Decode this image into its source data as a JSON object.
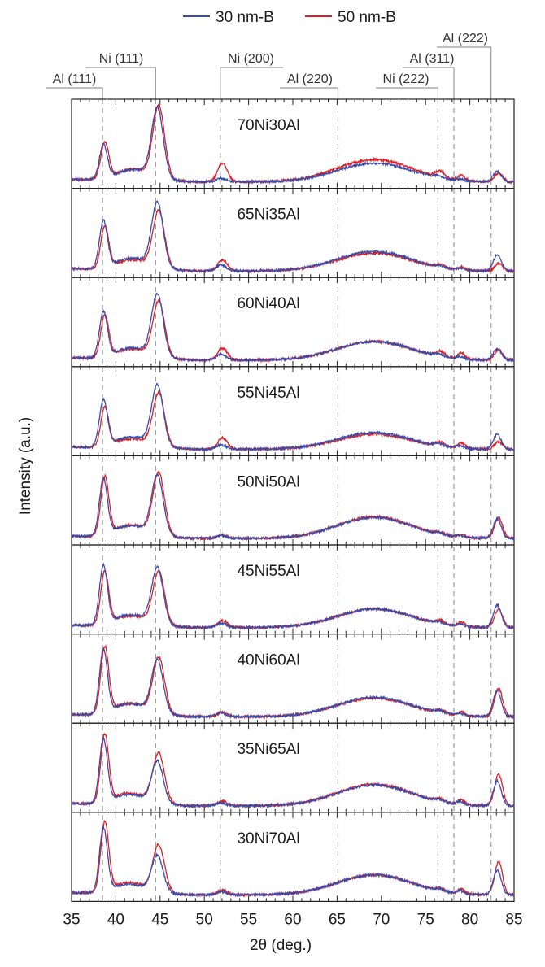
{
  "chart_data": {
    "type": "line",
    "title": "",
    "xlabel": "2θ (deg.)",
    "ylabel": "Intensity (a.u.)",
    "xlim": [
      35,
      85
    ],
    "x_ticks": [
      "35",
      "40",
      "45",
      "50",
      "55",
      "60",
      "65",
      "70",
      "75",
      "80",
      "85"
    ],
    "legend": {
      "position": "top-center",
      "entries": [
        {
          "name": "30 nm-B",
          "color": "#3B4BA8"
        },
        {
          "name": "50 nm-B",
          "color": "#E01E24"
        }
      ]
    },
    "reference_lines": [
      {
        "label": "Al (111)",
        "x": 38.5
      },
      {
        "label": "Ni (111)",
        "x": 44.5
      },
      {
        "label": "Ni (200)",
        "x": 51.8
      },
      {
        "label": "Al (220)",
        "x": 65.1
      },
      {
        "label": "Ni (222)",
        "x": 76.4
      },
      {
        "label": "Al (311)",
        "x": 78.2
      },
      {
        "label": "Al (222)",
        "x": 82.4
      }
    ],
    "panels": [
      {
        "label": "70Ni30Al",
        "series": [
          {
            "name": "30 nm-B",
            "peaks": {
              "al111": 0.45,
              "ni111": 0.92,
              "ni200": 0.05,
              "broad": 0.25,
              "ni222": 0.03,
              "al311": 0.02,
              "al222": 0.14
            }
          },
          {
            "name": "50 nm-B",
            "peaks": {
              "al111": 0.48,
              "ni111": 0.95,
              "ni200": 0.25,
              "broad": 0.3,
              "ni222": 0.09,
              "al311": 0.07,
              "al222": 0.12
            }
          }
        ]
      },
      {
        "label": "65Ni35Al",
        "series": [
          {
            "name": "30 nm-B",
            "peaks": {
              "al111": 0.62,
              "ni111": 0.85,
              "ni200": 0.08,
              "broad": 0.26,
              "ni222": 0.02,
              "al311": 0.02,
              "al222": 0.22
            }
          },
          {
            "name": "50 nm-B",
            "peaks": {
              "al111": 0.55,
              "ni111": 0.75,
              "ni200": 0.15,
              "broad": 0.24,
              "ni222": 0.04,
              "al311": 0.04,
              "al222": 0.1
            }
          }
        ]
      },
      {
        "label": "60Ni40Al",
        "series": [
          {
            "name": "30 nm-B",
            "peaks": {
              "al111": 0.6,
              "ni111": 0.82,
              "ni200": 0.08,
              "broad": 0.25,
              "ni222": 0.03,
              "al311": 0.03,
              "al222": 0.15
            }
          },
          {
            "name": "50 nm-B",
            "peaks": {
              "al111": 0.56,
              "ni111": 0.74,
              "ni200": 0.16,
              "broad": 0.25,
              "ni222": 0.07,
              "al311": 0.08,
              "al222": 0.14
            }
          }
        ]
      },
      {
        "label": "55Ni45Al",
        "series": [
          {
            "name": "30 nm-B",
            "peaks": {
              "al111": 0.62,
              "ni111": 0.8,
              "ni200": 0.06,
              "broad": 0.22,
              "ni222": 0.03,
              "al311": 0.03,
              "al222": 0.2
            }
          },
          {
            "name": "50 nm-B",
            "peaks": {
              "al111": 0.52,
              "ni111": 0.7,
              "ni200": 0.15,
              "broad": 0.2,
              "ni222": 0.06,
              "al311": 0.07,
              "al222": 0.1
            }
          }
        ]
      },
      {
        "label": "50Ni50Al",
        "series": [
          {
            "name": "30 nm-B",
            "peaks": {
              "al111": 0.75,
              "ni111": 0.78,
              "ni200": 0.04,
              "broad": 0.28,
              "ni222": 0.02,
              "al311": 0.02,
              "al222": 0.26
            }
          },
          {
            "name": "50 nm-B",
            "peaks": {
              "al111": 0.77,
              "ni111": 0.82,
              "ni200": 0.05,
              "broad": 0.29,
              "ni222": 0.03,
              "al311": 0.03,
              "al222": 0.28
            }
          }
        ]
      },
      {
        "label": "45Ni55Al",
        "series": [
          {
            "name": "30 nm-B",
            "peaks": {
              "al111": 0.78,
              "ni111": 0.74,
              "ni200": 0.06,
              "broad": 0.25,
              "ni222": 0.03,
              "al311": 0.03,
              "al222": 0.3
            }
          },
          {
            "name": "50 nm-B",
            "peaks": {
              "al111": 0.7,
              "ni111": 0.7,
              "ni200": 0.1,
              "broad": 0.25,
              "ni222": 0.05,
              "al311": 0.06,
              "al222": 0.25
            }
          }
        ]
      },
      {
        "label": "40Ni60Al",
        "series": [
          {
            "name": "30 nm-B",
            "peaks": {
              "al111": 0.85,
              "ni111": 0.7,
              "ni200": 0.05,
              "broad": 0.26,
              "ni222": 0.03,
              "al311": 0.03,
              "al222": 0.35
            }
          },
          {
            "name": "50 nm-B",
            "peaks": {
              "al111": 0.88,
              "ni111": 0.74,
              "ni200": 0.06,
              "broad": 0.25,
              "ni222": 0.04,
              "al311": 0.05,
              "al222": 0.38
            }
          }
        ]
      },
      {
        "label": "35Ni65Al",
        "series": [
          {
            "name": "30 nm-B",
            "peaks": {
              "al111": 0.85,
              "ni111": 0.55,
              "ni200": 0.04,
              "broad": 0.28,
              "ni222": 0.03,
              "al311": 0.04,
              "al222": 0.33
            }
          },
          {
            "name": "50 nm-B",
            "peaks": {
              "al111": 0.9,
              "ni111": 0.65,
              "ni200": 0.06,
              "broad": 0.29,
              "ni222": 0.04,
              "al311": 0.06,
              "al222": 0.42
            }
          }
        ]
      },
      {
        "label": "30Ni70Al",
        "series": [
          {
            "name": "30 nm-B",
            "peaks": {
              "al111": 0.85,
              "ni111": 0.48,
              "ni200": 0.04,
              "broad": 0.27,
              "ni222": 0.03,
              "al311": 0.04,
              "al222": 0.33
            }
          },
          {
            "name": "50 nm-B",
            "peaks": {
              "al111": 0.92,
              "ni111": 0.62,
              "ni200": 0.06,
              "broad": 0.27,
              "ni222": 0.04,
              "al311": 0.06,
              "al222": 0.44
            }
          }
        ]
      }
    ]
  }
}
